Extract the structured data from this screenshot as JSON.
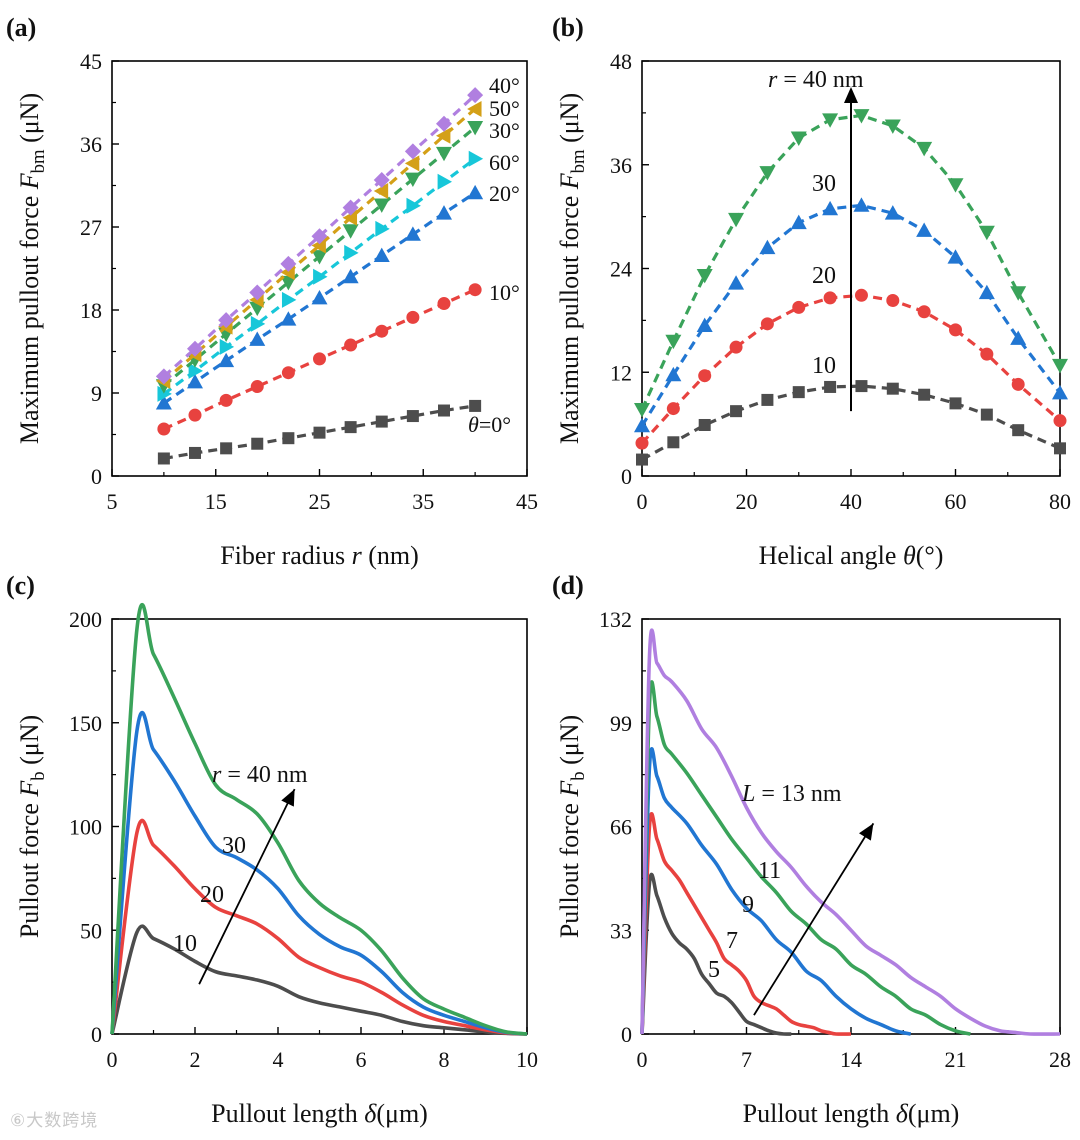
{
  "figure": {
    "watermark": "⑥大数跨境"
  },
  "chart_data": [
    {
      "panel": "(a)",
      "type": "line",
      "xlabel": "Fiber radius r (nm)",
      "ylabel": "Maximum pullout force F_bm (μN)",
      "xlim": [
        5,
        45
      ],
      "ylim": [
        0,
        45
      ],
      "xticks": [
        5,
        15,
        25,
        35,
        45
      ],
      "yticks": [
        0,
        9,
        18,
        27,
        36,
        45
      ],
      "x": [
        10,
        13,
        16,
        19,
        22,
        25,
        28,
        31,
        34,
        37,
        40
      ],
      "series": [
        {
          "name": "θ=0°",
          "color": "#4d4d4d",
          "marker": "square",
          "values": [
            1.9,
            2.5,
            3.0,
            3.5,
            4.1,
            4.7,
            5.3,
            5.9,
            6.5,
            7.1,
            7.6
          ]
        },
        {
          "name": "10°",
          "color": "#e8423f",
          "marker": "circle",
          "values": [
            5.1,
            6.6,
            8.2,
            9.7,
            11.2,
            12.7,
            14.2,
            15.7,
            17.2,
            18.7,
            20.2
          ]
        },
        {
          "name": "20°",
          "color": "#2176d2",
          "marker": "triangle-up",
          "values": [
            7.9,
            10.2,
            12.5,
            14.8,
            17.0,
            19.3,
            21.6,
            23.9,
            26.2,
            28.5,
            30.7
          ]
        },
        {
          "name": "60°",
          "color": "#17c7d9",
          "marker": "triangle-right",
          "values": [
            8.9,
            11.4,
            14.0,
            16.5,
            19.1,
            21.6,
            24.2,
            26.8,
            29.3,
            31.9,
            34.4
          ]
        },
        {
          "name": "30°",
          "color": "#3aa35a",
          "marker": "triangle-down",
          "values": [
            9.8,
            12.6,
            15.4,
            18.2,
            21.0,
            23.8,
            26.6,
            29.4,
            32.2,
            35.0,
            37.8
          ]
        },
        {
          "name": "50°",
          "color": "#d4a017",
          "marker": "triangle-left",
          "values": [
            10.3,
            13.2,
            16.2,
            19.1,
            22.1,
            25.0,
            28.0,
            30.9,
            33.9,
            36.9,
            39.8
          ]
        },
        {
          "name": "40°",
          "color": "#b07fe0",
          "marker": "diamond",
          "values": [
            10.8,
            13.8,
            16.9,
            19.9,
            23.0,
            26.0,
            29.1,
            32.1,
            35.2,
            38.2,
            41.3
          ]
        }
      ]
    },
    {
      "panel": "(b)",
      "type": "line",
      "xlabel": "Helical angle θ(°)",
      "ylabel": "Maximum pullout force F_bm (μN)",
      "xlim": [
        0,
        80
      ],
      "ylim": [
        0,
        48
      ],
      "xticks": [
        0,
        20,
        40,
        60,
        80
      ],
      "yticks": [
        0,
        12,
        24,
        36,
        48
      ],
      "x": [
        0,
        6,
        12,
        18,
        24,
        30,
        36,
        42,
        48,
        54,
        60,
        66,
        72,
        80
      ],
      "series": [
        {
          "name": "10",
          "color": "#4d4d4d",
          "marker": "square",
          "values": [
            1.9,
            3.9,
            5.9,
            7.5,
            8.8,
            9.7,
            10.3,
            10.4,
            10.1,
            9.4,
            8.4,
            7.1,
            5.3,
            3.2
          ]
        },
        {
          "name": "20",
          "color": "#e8423f",
          "marker": "circle",
          "values": [
            3.8,
            7.8,
            11.6,
            14.9,
            17.6,
            19.5,
            20.6,
            20.9,
            20.3,
            19.0,
            16.9,
            14.1,
            10.6,
            6.4
          ]
        },
        {
          "name": "30",
          "color": "#2176d2",
          "marker": "triangle-up",
          "values": [
            5.8,
            11.7,
            17.4,
            22.3,
            26.4,
            29.3,
            30.9,
            31.3,
            30.4,
            28.4,
            25.3,
            21.2,
            15.9,
            9.6
          ]
        },
        {
          "name": "r = 40 nm",
          "color": "#3aa35a",
          "marker": "triangle-down",
          "values": [
            7.7,
            15.6,
            23.2,
            29.7,
            35.1,
            39.1,
            41.2,
            41.7,
            40.5,
            37.9,
            33.7,
            28.2,
            21.2,
            12.8
          ]
        }
      ],
      "annotation": {
        "text": "r = 40 nm",
        "arrow_x": 40,
        "arrow_from_y": 7.5,
        "arrow_to_y": 45
      }
    },
    {
      "panel": "(c)",
      "type": "line",
      "xlabel": "Pullout length δ(μm)",
      "ylabel": "Pullout force F_b (μN)",
      "xlim": [
        0,
        10
      ],
      "ylim": [
        0,
        200
      ],
      "xticks": [
        0,
        2,
        4,
        6,
        8,
        10
      ],
      "yticks": [
        0,
        50,
        100,
        150,
        200
      ],
      "x": [
        0,
        0.6,
        1,
        1.5,
        2,
        2.5,
        3,
        3.5,
        4,
        4.5,
        5,
        5.5,
        6,
        6.5,
        7,
        7.5,
        8,
        8.5,
        9,
        9.5,
        10
      ],
      "series": [
        {
          "name": "10",
          "color": "#4d4d4d",
          "values": [
            0,
            49,
            46,
            41,
            35,
            30,
            28,
            26,
            23,
            18,
            15,
            13,
            11,
            9,
            6,
            4,
            3,
            2,
            1,
            0.3,
            0
          ]
        },
        {
          "name": "20",
          "color": "#e8423f",
          "values": [
            0,
            97,
            91,
            81,
            70,
            61,
            57,
            53,
            46,
            37,
            32,
            28,
            25,
            20,
            14,
            9,
            6,
            4,
            2,
            0.5,
            0
          ]
        },
        {
          "name": "30",
          "color": "#2176d2",
          "values": [
            0,
            146,
            137,
            122,
            105,
            90,
            85,
            79,
            70,
            57,
            48,
            42,
            38,
            30,
            20,
            13,
            9,
            6,
            3,
            0.8,
            0
          ]
        },
        {
          "name": "r = 40 nm",
          "color": "#3aa35a",
          "values": [
            0,
            195,
            183,
            162,
            140,
            120,
            113,
            106,
            92,
            74,
            63,
            56,
            50,
            40,
            27,
            17,
            12,
            8,
            4,
            1,
            0
          ]
        }
      ],
      "annotation": {
        "text": "r = 40 nm",
        "arrow_from": [
          2.1,
          24
        ],
        "arrow_to": [
          4.4,
          118
        ]
      }
    },
    {
      "panel": "(d)",
      "type": "line",
      "xlabel": "Pullout length δ(μm)",
      "ylabel": "Pullout force F_b (μN)",
      "xlim": [
        0,
        28
      ],
      "ylim": [
        0,
        132
      ],
      "xticks": [
        0,
        7,
        14,
        21,
        28
      ],
      "yticks": [
        0,
        33,
        66,
        99,
        132
      ],
      "series": [
        {
          "name": "5",
          "color": "#4d4d4d",
          "x": [
            0,
            0.5,
            1,
            1.5,
            2,
            2.5,
            3,
            3.5,
            4,
            4.5,
            5,
            5.5,
            6,
            6.5,
            7,
            7.5,
            8,
            8.5,
            9,
            9.5,
            10
          ],
          "values": [
            0,
            48,
            44,
            37,
            32,
            29,
            27,
            24,
            19,
            16,
            13,
            12,
            10,
            7,
            4,
            3,
            2,
            1,
            0.3,
            0,
            0
          ]
        },
        {
          "name": "7",
          "color": "#e8423f",
          "x": [
            0,
            0.5,
            1,
            1.5,
            2,
            2.5,
            3,
            3.5,
            4,
            4.5,
            5,
            5.5,
            6,
            6.5,
            7,
            7.5,
            8,
            8.5,
            9,
            9.5,
            10,
            10.5,
            11,
            11.5,
            12,
            12.5,
            13,
            14
          ],
          "values": [
            0,
            66,
            62,
            55,
            52,
            49,
            45,
            41,
            37,
            33,
            29,
            24,
            22,
            20,
            17,
            12,
            10,
            9,
            8,
            6,
            4,
            3,
            2.5,
            2,
            1,
            0.5,
            0,
            0
          ]
        },
        {
          "name": "9",
          "color": "#2176d2",
          "x": [
            0,
            0.5,
            1,
            1.5,
            2,
            3,
            4,
            5,
            6,
            7,
            8,
            9,
            10,
            11,
            12,
            13,
            14,
            15,
            16,
            17,
            18
          ],
          "values": [
            0,
            85,
            82,
            75,
            72,
            67,
            60,
            54,
            46,
            40,
            36,
            30,
            26,
            20,
            17,
            12,
            8,
            5,
            3,
            1,
            0
          ]
        },
        {
          "name": "11",
          "color": "#3aa35a",
          "x": [
            0,
            0.5,
            1,
            1.5,
            2,
            3,
            4,
            5,
            6,
            7,
            8,
            9,
            10,
            11,
            12,
            13,
            14,
            15,
            16,
            17,
            18,
            19,
            20,
            21,
            22
          ],
          "values": [
            0,
            105,
            101,
            92,
            89,
            83,
            76,
            69,
            62,
            56,
            50,
            45,
            39,
            35,
            30,
            27,
            22,
            19,
            15,
            12,
            8,
            6,
            3,
            1,
            0
          ]
        },
        {
          "name": "L = 13 nm",
          "color": "#b07fe0",
          "x": [
            0,
            0.5,
            1,
            1.5,
            2,
            3,
            4,
            5,
            6,
            7,
            8,
            9,
            10,
            11,
            12,
            13,
            14,
            15,
            16,
            17,
            18,
            19,
            20,
            21,
            22,
            23,
            24,
            25,
            26,
            28
          ],
          "values": [
            0,
            120,
            118,
            114,
            112,
            106,
            97,
            91,
            82,
            72,
            64,
            58,
            53,
            47,
            42,
            38,
            33,
            28,
            25,
            22,
            18,
            15,
            12,
            8,
            5,
            2.5,
            1,
            0.5,
            0,
            0
          ]
        }
      ],
      "annotation": {
        "text": "L = 13 nm",
        "arrow_from": [
          7.5,
          6
        ],
        "arrow_to": [
          15.5,
          67
        ]
      }
    }
  ]
}
